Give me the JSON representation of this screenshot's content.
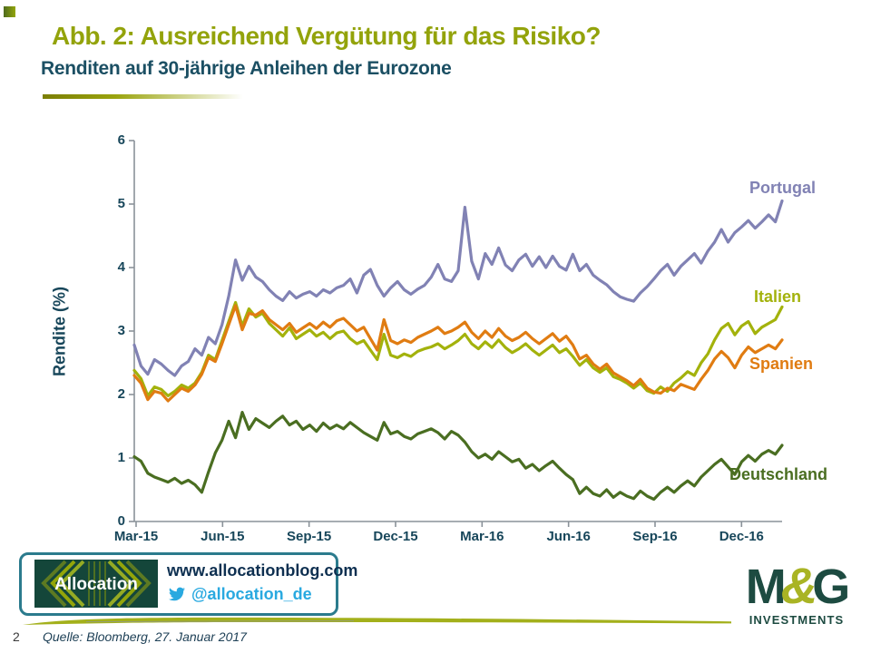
{
  "header": {
    "title": "Abb. 2: Ausreichend Vergütung für das Risiko?",
    "subtitle": "Renditen auf 30-jährige Anleihen der Eurozone",
    "title_color": "#93a30b",
    "subtitle_color": "#1b4f63"
  },
  "footer": {
    "page_number": "2",
    "source": "Quelle: Bloomberg, 27. Januar 2017"
  },
  "branding": {
    "allocation": {
      "logo_text": "Allocation",
      "website": "www.allocationblog.com",
      "twitter_handle": "@allocation_de",
      "twitter_color": "#29a9e0",
      "box_border_color": "#2b7b8d"
    },
    "mg": {
      "letter_m": "M",
      "ampersand": "&",
      "letter_g": "G",
      "subtext": "INVESTMENTS",
      "dark_color": "#1d4b41",
      "olive_color": "#a9b424"
    }
  },
  "chart_data": {
    "type": "line",
    "ylabel": "Rendite (%)",
    "ylim": [
      0,
      6
    ],
    "y_ticks": [
      0,
      1,
      2,
      3,
      4,
      5,
      6
    ],
    "x_ticks": [
      "Mar-15",
      "Jun-15",
      "Sep-15",
      "Dec-15",
      "Mar-16",
      "Jun-16",
      "Sep-16",
      "Dec-16"
    ],
    "x_range": "Mar-2015 bis Jan-2017, wöchentliche Werte",
    "grid": false,
    "axis_color": "#8a9299",
    "legend_position": "end-of-line labels",
    "series": [
      {
        "name": "Portugal",
        "color": "#8182b4",
        "values": [
          2.78,
          2.45,
          2.32,
          2.55,
          2.48,
          2.38,
          2.3,
          2.45,
          2.52,
          2.72,
          2.62,
          2.9,
          2.8,
          3.1,
          3.55,
          4.12,
          3.8,
          4.02,
          3.85,
          3.78,
          3.65,
          3.55,
          3.48,
          3.62,
          3.52,
          3.58,
          3.62,
          3.55,
          3.65,
          3.6,
          3.68,
          3.72,
          3.82,
          3.6,
          3.88,
          3.97,
          3.72,
          3.55,
          3.68,
          3.78,
          3.65,
          3.58,
          3.66,
          3.72,
          3.85,
          4.05,
          3.82,
          3.78,
          3.95,
          4.95,
          4.1,
          3.82,
          4.22,
          4.05,
          4.31,
          4.04,
          3.95,
          4.12,
          4.21,
          4.02,
          4.17,
          4.0,
          4.18,
          4.02,
          3.96,
          4.21,
          3.95,
          4.05,
          3.88,
          3.8,
          3.73,
          3.62,
          3.54,
          3.5,
          3.47,
          3.6,
          3.7,
          3.82,
          3.95,
          4.05,
          3.88,
          4.02,
          4.12,
          4.22,
          4.07,
          4.26,
          4.4,
          4.6,
          4.4,
          4.55,
          4.64,
          4.74,
          4.62,
          4.72,
          4.83,
          4.72,
          5.05
        ]
      },
      {
        "name": "Italien",
        "color": "#a3b20c",
        "values": [
          2.38,
          2.25,
          1.98,
          2.12,
          2.08,
          1.98,
          2.05,
          2.15,
          2.1,
          2.18,
          2.35,
          2.62,
          2.55,
          2.85,
          3.15,
          3.45,
          3.08,
          3.35,
          3.22,
          3.28,
          3.12,
          3.02,
          2.92,
          3.05,
          2.88,
          2.95,
          3.02,
          2.92,
          2.98,
          2.88,
          2.97,
          3.0,
          2.88,
          2.8,
          2.85,
          2.7,
          2.55,
          2.95,
          2.62,
          2.58,
          2.64,
          2.6,
          2.68,
          2.72,
          2.75,
          2.8,
          2.72,
          2.78,
          2.85,
          2.95,
          2.8,
          2.72,
          2.83,
          2.74,
          2.86,
          2.74,
          2.66,
          2.72,
          2.8,
          2.7,
          2.62,
          2.7,
          2.78,
          2.66,
          2.72,
          2.6,
          2.46,
          2.55,
          2.42,
          2.35,
          2.42,
          2.28,
          2.24,
          2.18,
          2.1,
          2.18,
          2.06,
          2.02,
          2.12,
          2.05,
          2.18,
          2.26,
          2.36,
          2.3,
          2.5,
          2.64,
          2.86,
          3.04,
          3.12,
          2.94,
          3.08,
          3.15,
          2.96,
          3.06,
          3.12,
          3.18,
          3.38
        ]
      },
      {
        "name": "Spanien",
        "color": "#e07c12",
        "values": [
          2.3,
          2.18,
          1.92,
          2.05,
          2.02,
          1.9,
          2.0,
          2.1,
          2.05,
          2.15,
          2.32,
          2.58,
          2.52,
          2.8,
          3.1,
          3.4,
          3.02,
          3.28,
          3.25,
          3.32,
          3.18,
          3.1,
          3.02,
          3.12,
          2.98,
          3.05,
          3.12,
          3.04,
          3.14,
          3.06,
          3.16,
          3.2,
          3.1,
          3.0,
          3.06,
          2.88,
          2.7,
          3.18,
          2.85,
          2.8,
          2.86,
          2.82,
          2.9,
          2.95,
          3.0,
          3.06,
          2.96,
          3.0,
          3.06,
          3.14,
          2.98,
          2.88,
          3.0,
          2.9,
          3.04,
          2.92,
          2.85,
          2.9,
          2.98,
          2.88,
          2.8,
          2.88,
          2.96,
          2.84,
          2.92,
          2.78,
          2.56,
          2.62,
          2.48,
          2.4,
          2.48,
          2.34,
          2.28,
          2.22,
          2.14,
          2.24,
          2.1,
          2.04,
          2.02,
          2.1,
          2.06,
          2.16,
          2.12,
          2.08,
          2.24,
          2.38,
          2.56,
          2.68,
          2.58,
          2.42,
          2.62,
          2.75,
          2.66,
          2.72,
          2.78,
          2.72,
          2.86
        ]
      },
      {
        "name": "Deutschland",
        "color": "#4a6e21",
        "values": [
          1.02,
          0.95,
          0.76,
          0.7,
          0.66,
          0.62,
          0.68,
          0.6,
          0.65,
          0.58,
          0.46,
          0.78,
          1.08,
          1.28,
          1.58,
          1.32,
          1.72,
          1.45,
          1.62,
          1.55,
          1.48,
          1.58,
          1.66,
          1.52,
          1.58,
          1.45,
          1.52,
          1.42,
          1.55,
          1.46,
          1.52,
          1.46,
          1.56,
          1.48,
          1.4,
          1.34,
          1.28,
          1.56,
          1.38,
          1.42,
          1.34,
          1.3,
          1.38,
          1.42,
          1.46,
          1.4,
          1.3,
          1.42,
          1.36,
          1.25,
          1.1,
          1.0,
          1.06,
          0.98,
          1.1,
          1.02,
          0.94,
          0.98,
          0.84,
          0.9,
          0.8,
          0.88,
          0.95,
          0.84,
          0.74,
          0.66,
          0.44,
          0.54,
          0.44,
          0.4,
          0.5,
          0.38,
          0.46,
          0.4,
          0.36,
          0.48,
          0.4,
          0.35,
          0.46,
          0.54,
          0.46,
          0.56,
          0.64,
          0.56,
          0.7,
          0.8,
          0.9,
          0.98,
          0.86,
          0.74,
          0.94,
          1.04,
          0.95,
          1.06,
          1.12,
          1.06,
          1.2
        ]
      }
    ]
  }
}
